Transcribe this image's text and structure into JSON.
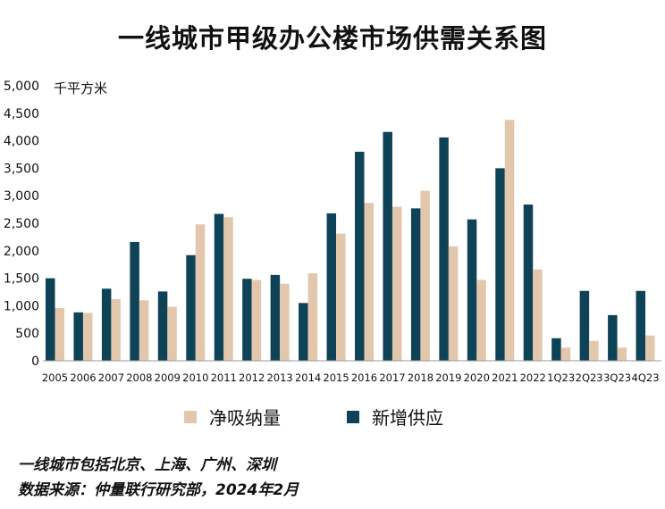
{
  "title": "一线城市甲级办公楼市场供需关系图",
  "chart_data": {
    "type": "bar",
    "unit_label": "千平方米",
    "ylim": [
      0,
      5000
    ],
    "yticks": [
      "0",
      "500",
      "1,000",
      "1,500",
      "2,000",
      "2,500",
      "3,000",
      "3,500",
      "4,000",
      "4,500",
      "5,000"
    ],
    "categories": [
      "2005",
      "2006",
      "2007",
      "2008",
      "2009",
      "2010",
      "2011",
      "2012",
      "2013",
      "2014",
      "2015",
      "2016",
      "2017",
      "2018",
      "2019",
      "2020",
      "2021",
      "2022",
      "1Q23",
      "2Q23",
      "3Q23",
      "4Q23"
    ],
    "series": [
      {
        "name": "新增供应",
        "color": "#0e4257",
        "values": [
          1500,
          880,
          1310,
          2160,
          1260,
          1920,
          2670,
          1490,
          1560,
          1050,
          2680,
          3800,
          4160,
          2770,
          4060,
          2570,
          3500,
          2840,
          410,
          1270,
          830,
          1270
        ]
      },
      {
        "name": "净吸纳量",
        "color": "#e3c7ad",
        "values": [
          960,
          870,
          1120,
          1100,
          980,
          2480,
          2610,
          1470,
          1400,
          1590,
          2310,
          2870,
          2800,
          3090,
          2080,
          1470,
          4380,
          1660,
          240,
          360,
          240,
          460
        ]
      }
    ],
    "legend_position": "bottom",
    "grid": false
  },
  "legend": {
    "absorption_label": "净吸纳量",
    "supply_label": "新增供应"
  },
  "footnotes": {
    "line1": "一线城市包括北京、上海、广州、深圳",
    "line2": "数据来源：仲量联行研究部，2024年2月"
  }
}
